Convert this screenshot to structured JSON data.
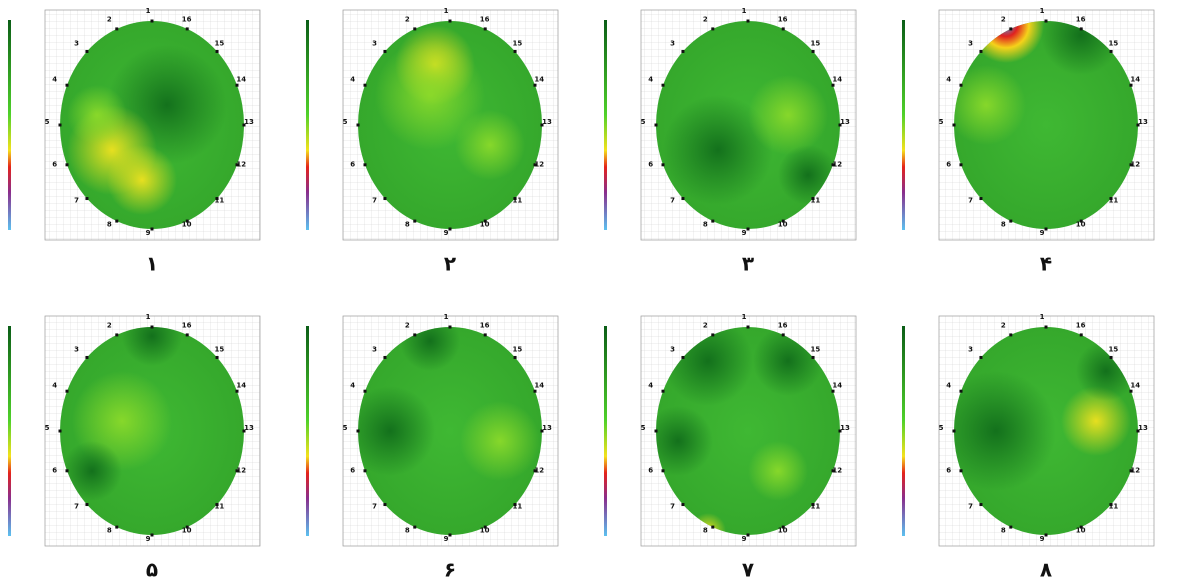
{
  "panels": [
    {
      "label": "۱"
    },
    {
      "label": "۲"
    },
    {
      "label": "۳"
    },
    {
      "label": "۴"
    },
    {
      "label": "۵"
    },
    {
      "label": "۶"
    },
    {
      "label": "۷"
    },
    {
      "label": "۸"
    }
  ],
  "points": [
    "1",
    "2",
    "3",
    "4",
    "5",
    "6",
    "7",
    "8",
    "9",
    "10",
    "11",
    "12",
    "13",
    "14",
    "15",
    "16"
  ]
}
